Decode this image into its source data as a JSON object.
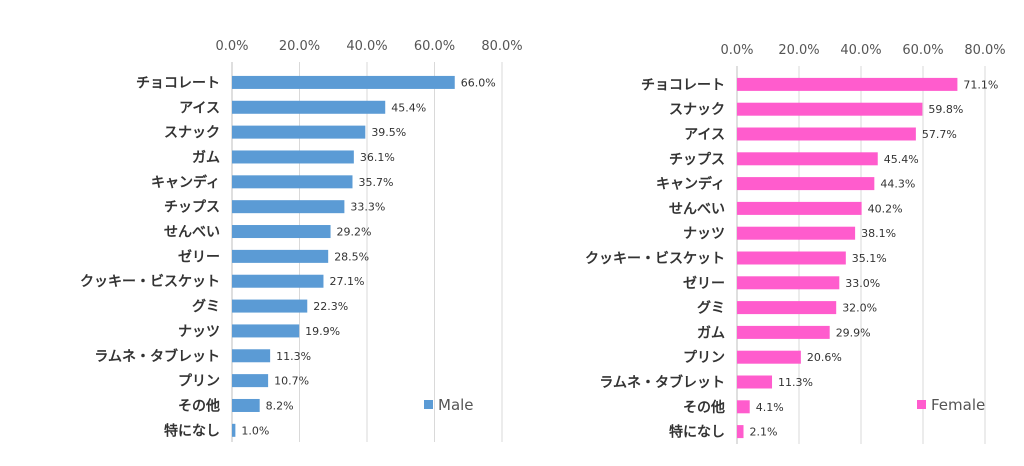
{
  "chart_data": [
    {
      "type": "bar",
      "orientation": "horizontal",
      "categories": [
        "チョコレート",
        "アイス",
        "スナック",
        "ガム",
        "キャンディ",
        "チップス",
        "せんべい",
        "ゼリー",
        "クッキー・ビスケット",
        "グミ",
        "ナッツ",
        "ラムネ・タブレット",
        "プリン",
        "その他",
        "特になし"
      ],
      "series": [
        {
          "name": "Male",
          "color": "#5b9bd5",
          "values": [
            66.0,
            45.4,
            39.5,
            36.1,
            35.7,
            33.3,
            29.2,
            28.5,
            27.1,
            22.3,
            19.9,
            11.3,
            10.7,
            8.2,
            1.0
          ],
          "labels": [
            "66.0%",
            "45.4%",
            "39.5%",
            "36.1%",
            "35.7%",
            "33.3%",
            "29.2%",
            "28.5%",
            "27.1%",
            "22.3%",
            "19.9%",
            "11.3%",
            "10.7%",
            "8.2%",
            "1.0%"
          ]
        }
      ],
      "xlim": [
        0,
        80
      ],
      "ticks": [
        0,
        20,
        40,
        60,
        80
      ],
      "tick_labels": [
        "0.0%",
        "20.0%",
        "40.0%",
        "60.0%",
        "80.0%"
      ],
      "x_axis_position": "top",
      "grid": true,
      "legend": "bottom-right"
    },
    {
      "type": "bar",
      "orientation": "horizontal",
      "categories": [
        "チョコレート",
        "スナック",
        "アイス",
        "チップス",
        "キャンディ",
        "せんべい",
        "ナッツ",
        "クッキー・ビスケット",
        "ゼリー",
        "グミ",
        "ガム",
        "プリン",
        "ラムネ・タブレット",
        "その他",
        "特になし"
      ],
      "series": [
        {
          "name": "Female",
          "color": "#ff5ccd",
          "values": [
            71.1,
            59.8,
            57.7,
            45.4,
            44.3,
            40.2,
            38.1,
            35.1,
            33.0,
            32.0,
            29.9,
            20.6,
            11.3,
            4.1,
            2.1
          ],
          "labels": [
            "71.1%",
            "59.8%",
            "57.7%",
            "45.4%",
            "44.3%",
            "40.2%",
            "38.1%",
            "35.1%",
            "33.0%",
            "32.0%",
            "29.9%",
            "20.6%",
            "11.3%",
            "4.1%",
            "2.1%"
          ]
        }
      ],
      "xlim": [
        0,
        80
      ],
      "ticks": [
        0,
        20,
        40,
        60,
        80
      ],
      "tick_labels": [
        "0.0%",
        "20.0%",
        "40.0%",
        "60.0%",
        "80.0%"
      ],
      "x_axis_position": "top",
      "grid": true,
      "legend": "bottom-right"
    }
  ]
}
